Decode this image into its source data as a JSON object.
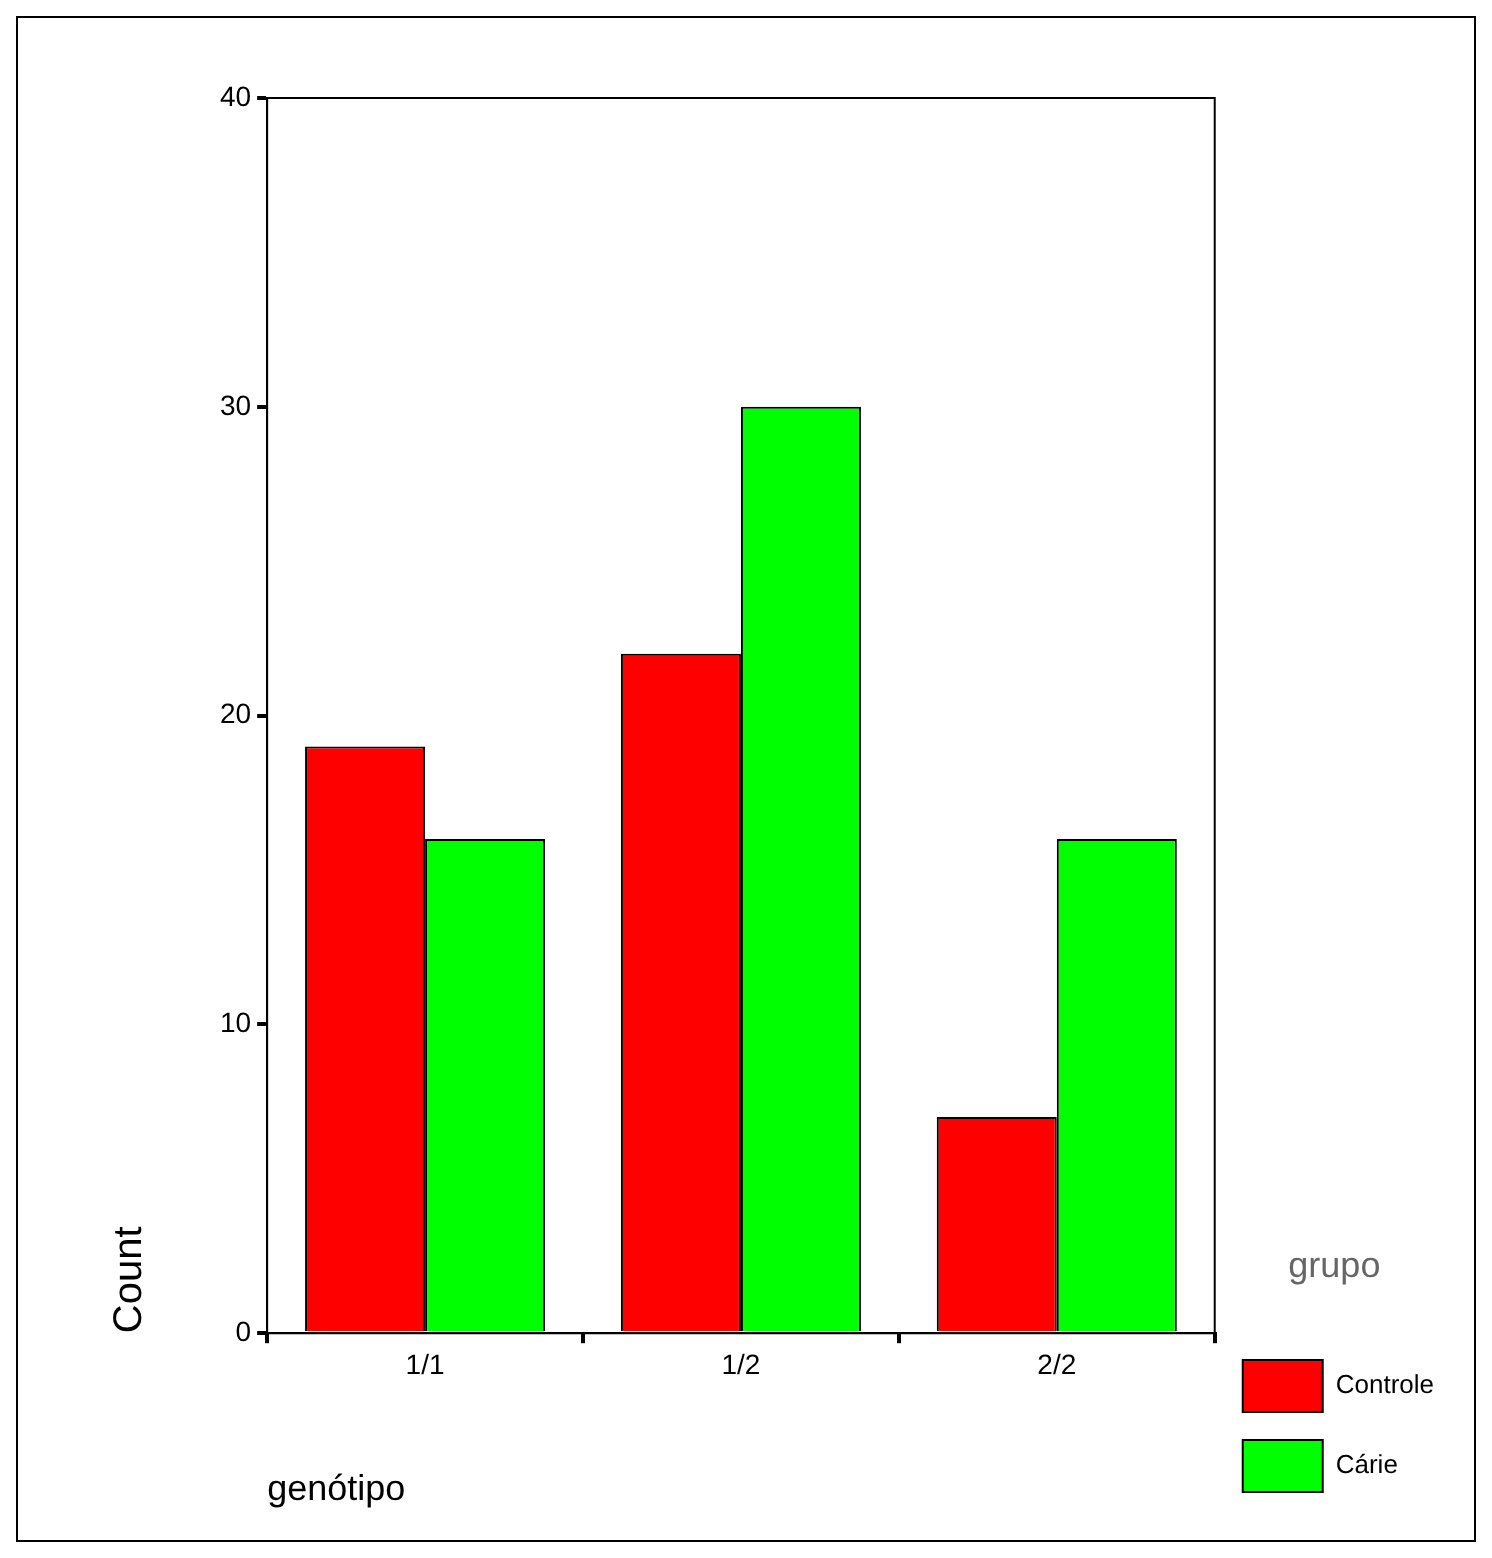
{
  "chart_data": {
    "type": "bar",
    "xlabel": "genótipo",
    "ylabel": "Count",
    "legend_title": "grupo",
    "categories": [
      "1/1",
      "1/2",
      "2/2"
    ],
    "series": [
      {
        "name": "Controle",
        "color": "#ff0000",
        "values": [
          19,
          22,
          7
        ]
      },
      {
        "name": "Cárie",
        "color": "#00ff00",
        "values": [
          16,
          30,
          16
        ]
      }
    ],
    "ylim": [
      0,
      40
    ],
    "yticks": [
      0,
      10,
      20,
      30,
      40
    ],
    "grid": false,
    "legend": "bottom right"
  }
}
